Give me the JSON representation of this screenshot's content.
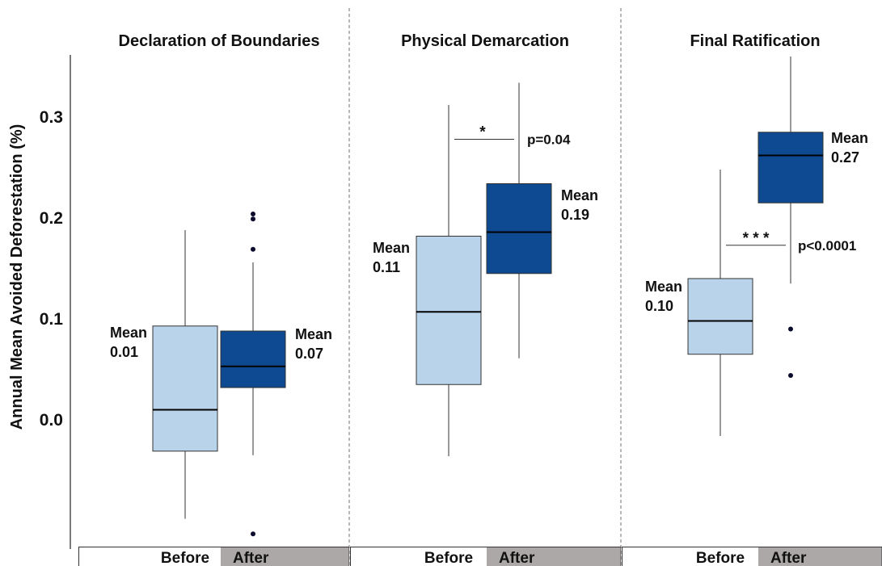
{
  "chart_data": {
    "type": "boxplot",
    "ylabel": "Annual Mean Avoided Deforestation (%)",
    "ylim": [
      -0.13,
      0.36
    ],
    "yticks": [
      0.0,
      0.1,
      0.2,
      0.3
    ],
    "ytick_labels": [
      "0.0",
      "0.1",
      "0.2",
      "0.3"
    ],
    "grid": false,
    "categories": [
      "Before",
      "After"
    ],
    "colors": {
      "Before": "#b8d3ea",
      "After": "#0d4a91",
      "after_label_bg": "#ada8a8",
      "dashed_divider": "#888888"
    },
    "panels": [
      {
        "title": "Declaration of Boundaries",
        "boxes": [
          {
            "group": "Before",
            "whisker_low": -0.098,
            "q1": -0.031,
            "median": 0.01,
            "q3": 0.093,
            "whisker_high": 0.188,
            "outliers": [],
            "mean_label": [
              "Mean",
              "0.01"
            ]
          },
          {
            "group": "After",
            "whisker_low": -0.035,
            "q1": 0.032,
            "median": 0.053,
            "q3": 0.088,
            "whisker_high": 0.156,
            "outliers": [
              0.204,
              0.199,
              0.169,
              -0.113
            ],
            "mean_label": [
              "Mean",
              "0.07"
            ]
          }
        ],
        "significance": null
      },
      {
        "title": "Physical Demarcation",
        "boxes": [
          {
            "group": "Before",
            "whisker_low": -0.036,
            "q1": 0.035,
            "median": 0.107,
            "q3": 0.182,
            "whisker_high": 0.312,
            "outliers": [],
            "mean_label": [
              "Mean",
              "0.11"
            ]
          },
          {
            "group": "After",
            "whisker_low": 0.061,
            "q1": 0.145,
            "median": 0.186,
            "q3": 0.234,
            "whisker_high": 0.334,
            "outliers": [],
            "mean_label": [
              "Mean",
              "0.19"
            ]
          }
        ],
        "significance": {
          "stars": "*",
          "p": "p=0.04",
          "y": 0.278
        }
      },
      {
        "title": "Final Ratification",
        "boxes": [
          {
            "group": "Before",
            "whisker_low": -0.016,
            "q1": 0.065,
            "median": 0.098,
            "q3": 0.14,
            "whisker_high": 0.248,
            "outliers": [],
            "mean_label": [
              "Mean",
              "0.10"
            ]
          },
          {
            "group": "After",
            "whisker_low": 0.135,
            "q1": 0.215,
            "median": 0.262,
            "q3": 0.285,
            "whisker_high": 0.36,
            "outliers": [
              0.09,
              0.044
            ],
            "mean_label": [
              "Mean",
              "0.27"
            ]
          }
        ],
        "significance": {
          "stars": "* * *",
          "p": "p<0.0001",
          "y": 0.173
        }
      }
    ]
  }
}
